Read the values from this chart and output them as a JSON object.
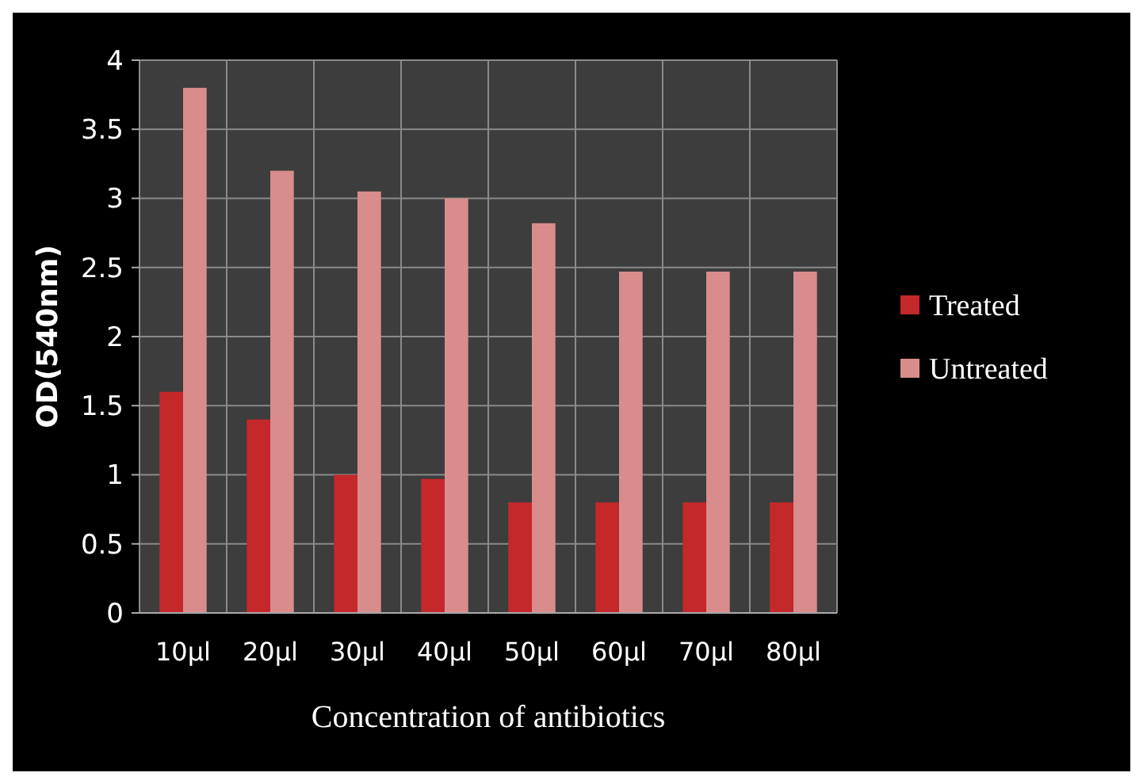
{
  "chart_data": {
    "type": "bar",
    "xlabel": "Concentration of antibiotics",
    "ylabel": "OD(540nm)",
    "categories": [
      "10µl",
      "20µl",
      "30µl",
      "40µl",
      "50µl",
      "60µl",
      "70µl",
      "80µl"
    ],
    "series": [
      {
        "name": "Treated",
        "color": "#c4282b",
        "values": [
          1.6,
          1.4,
          1.0,
          0.97,
          0.8,
          0.8,
          0.8,
          0.8
        ]
      },
      {
        "name": "Untreated",
        "color": "#d98c8c",
        "values": [
          3.8,
          3.2,
          3.05,
          3.0,
          2.82,
          2.47,
          2.47,
          2.47
        ]
      }
    ],
    "ylim": [
      0,
      4
    ],
    "yticks": [
      0,
      0.5,
      1,
      1.5,
      2,
      2.5,
      3,
      3.5,
      4
    ],
    "grid": true,
    "legend": "right"
  }
}
